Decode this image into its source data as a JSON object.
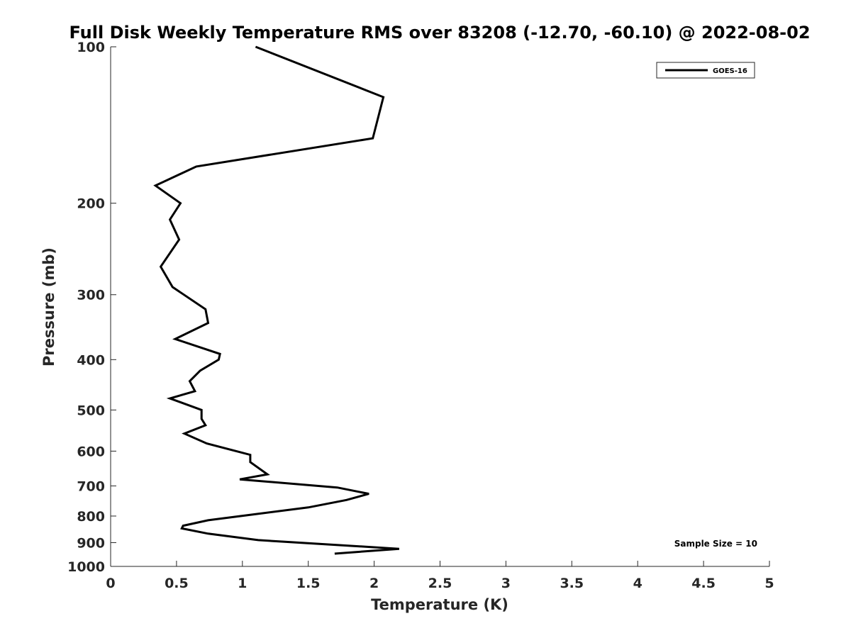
{
  "chart_data": {
    "type": "line",
    "title": "Full Disk Weekly Temperature RMS over 83208 (-12.70, -60.10) @ 2022-08-02",
    "xlabel": "Temperature (K)",
    "ylabel": "Pressure (mb)",
    "xlim": [
      0,
      5
    ],
    "ylim": [
      100,
      1000
    ],
    "yscale": "log",
    "y_reversed": true,
    "grid": false,
    "legend_position": "top-right",
    "x_ticks": [
      0,
      0.5,
      1,
      1.5,
      2,
      2.5,
      3,
      3.5,
      4,
      4.5,
      5
    ],
    "x_tick_labels": [
      "0",
      "0.5",
      "1",
      "1.5",
      "2",
      "2.5",
      "3",
      "3.5",
      "4",
      "4.5",
      "5"
    ],
    "y_ticks": [
      100,
      200,
      300,
      400,
      500,
      600,
      700,
      800,
      900,
      1000
    ],
    "y_tick_labels": [
      "100",
      "200",
      "300",
      "400",
      "500",
      "600",
      "700",
      "800",
      "900",
      "1000"
    ],
    "series": [
      {
        "name": "GOES-16",
        "color": "#000000",
        "points": [
          {
            "x": 1.1,
            "p": 100
          },
          {
            "x": 2.07,
            "p": 125
          },
          {
            "x": 1.99,
            "p": 150
          },
          {
            "x": 0.65,
            "p": 170
          },
          {
            "x": 0.34,
            "p": 185
          },
          {
            "x": 0.53,
            "p": 200
          },
          {
            "x": 0.45,
            "p": 215
          },
          {
            "x": 0.52,
            "p": 235
          },
          {
            "x": 0.38,
            "p": 265
          },
          {
            "x": 0.47,
            "p": 290
          },
          {
            "x": 0.72,
            "p": 320
          },
          {
            "x": 0.74,
            "p": 340
          },
          {
            "x": 0.49,
            "p": 365
          },
          {
            "x": 0.83,
            "p": 390
          },
          {
            "x": 0.82,
            "p": 400
          },
          {
            "x": 0.68,
            "p": 420
          },
          {
            "x": 0.6,
            "p": 440
          },
          {
            "x": 0.64,
            "p": 460
          },
          {
            "x": 0.45,
            "p": 475
          },
          {
            "x": 0.69,
            "p": 500
          },
          {
            "x": 0.69,
            "p": 520
          },
          {
            "x": 0.72,
            "p": 535
          },
          {
            "x": 0.56,
            "p": 555
          },
          {
            "x": 0.73,
            "p": 580
          },
          {
            "x": 1.06,
            "p": 610
          },
          {
            "x": 1.06,
            "p": 630
          },
          {
            "x": 1.19,
            "p": 665
          },
          {
            "x": 0.98,
            "p": 680
          },
          {
            "x": 1.72,
            "p": 705
          },
          {
            "x": 1.96,
            "p": 725
          },
          {
            "x": 1.79,
            "p": 745
          },
          {
            "x": 1.5,
            "p": 770
          },
          {
            "x": 1.07,
            "p": 795
          },
          {
            "x": 0.74,
            "p": 815
          },
          {
            "x": 0.55,
            "p": 835
          },
          {
            "x": 0.54,
            "p": 845
          },
          {
            "x": 0.74,
            "p": 865
          },
          {
            "x": 1.12,
            "p": 890
          },
          {
            "x": 2.19,
            "p": 925
          },
          {
            "x": 1.7,
            "p": 945
          }
        ]
      }
    ],
    "annotations": [
      {
        "text": "Sample Size = 10",
        "position": "bottom-right"
      }
    ]
  }
}
